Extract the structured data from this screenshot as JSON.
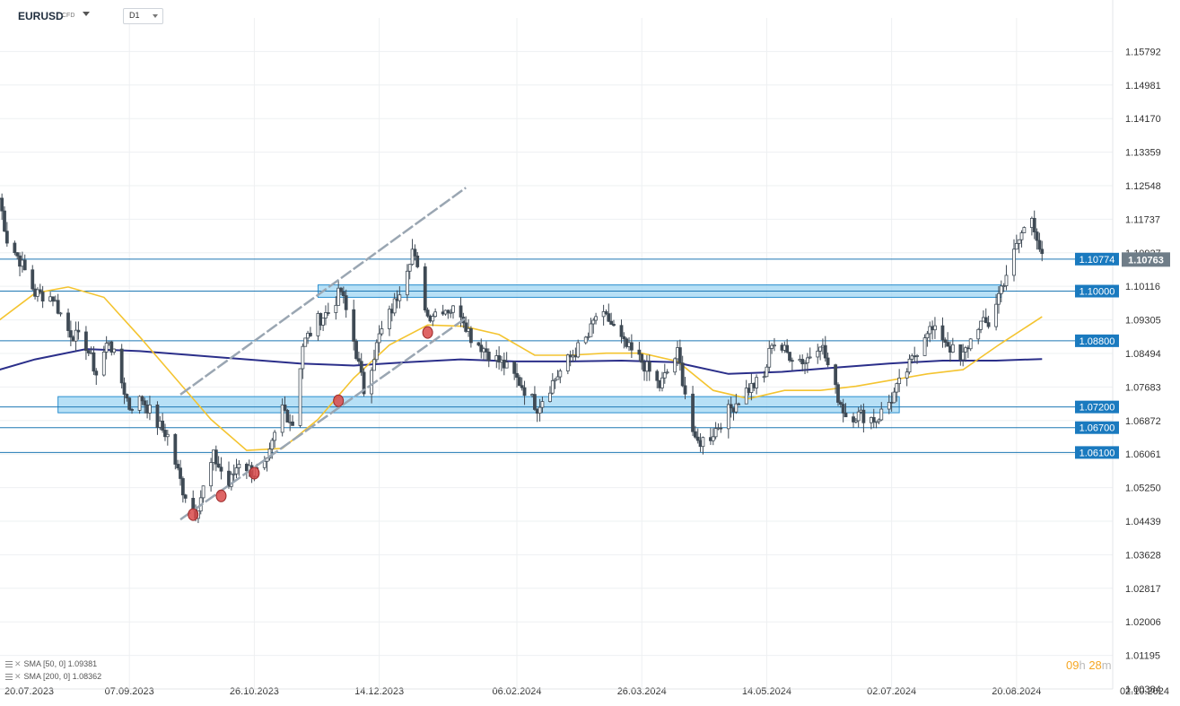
{
  "header": {
    "symbol": "EURUSD",
    "instrument_type": "CFD",
    "timeframe": "D1"
  },
  "indicators": [
    {
      "label": "SMA [50, 0]",
      "value": "1.09381",
      "color": "#f4c430"
    },
    {
      "label": "SMA [200, 0]",
      "value": "1.08362",
      "color": "#2b2f8a"
    }
  ],
  "countdown": {
    "hours": "09",
    "h_unit": "h",
    "minutes": "28",
    "m_unit": "m"
  },
  "colors": {
    "up_candle": "#ffffff",
    "down_candle": "#3f4a55",
    "grid": "#eef0f2",
    "level_line": "#1f78b4",
    "level_tag": "#1a7abf",
    "zone_fill": "#9fd6f3",
    "zone_border": "#2a8fcf",
    "channel_line": "#9aa6b2",
    "marker": "#d94a4a",
    "current_price_tag": "#6f7d88"
  },
  "chart_data": {
    "type": "candlestick",
    "symbol": "EURUSD",
    "timeframe": "D1",
    "ylim": [
      1.00384,
      1.16603
    ],
    "y_ticks": [
      "1.15792",
      "1.14981",
      "1.14170",
      "1.13359",
      "1.12548",
      "1.11737",
      "1.10927",
      "1.10116",
      "1.09305",
      "1.08494",
      "1.07683",
      "1.06872",
      "1.06061",
      "1.05250",
      "1.04439",
      "1.03628",
      "1.02817",
      "1.02006",
      "1.01195",
      "1.00384"
    ],
    "x_ticks": [
      "20.07.2023",
      "07.09.2023",
      "26.10.2023",
      "14.12.2023",
      "06.02.2024",
      "26.03.2024",
      "14.05.2024",
      "02.07.2024",
      "20.08.2024",
      "02.10.2024"
    ],
    "current_price": "1.10763",
    "levels": [
      "1.10774",
      "1.10000",
      "1.08800",
      "1.07200",
      "1.06700",
      "1.06100"
    ],
    "zones": [
      {
        "from_date": "2023-11-20",
        "to_date": "2024-08-14",
        "low": 1.0985,
        "high": 1.1015
      },
      {
        "from_date": "2023-08-10",
        "to_date": "2024-07-05",
        "low": 1.0706,
        "high": 1.0745
      }
    ],
    "channel": [
      {
        "from": [
          "2023-09-27",
          1.0448
        ],
        "to": [
          "2024-01-17",
          1.0935
        ]
      },
      {
        "from": [
          "2023-09-27",
          1.075
        ],
        "to": [
          "2024-01-17",
          1.125
        ]
      }
    ],
    "markers": [
      [
        "2023-10-02",
        1.046
      ],
      [
        "2023-10-13",
        1.0505
      ],
      [
        "2023-10-26",
        1.056
      ],
      [
        "2023-11-28",
        1.0735
      ],
      [
        "2024-01-02",
        1.09
      ]
    ],
    "series_close": [
      [
        "2023-07-18",
        1.1225
      ],
      [
        "2023-07-21",
        1.1125
      ],
      [
        "2023-07-26",
        1.1075
      ],
      [
        "2023-08-01",
        1.0995
      ],
      [
        "2023-08-08",
        1.0985
      ],
      [
        "2023-08-14",
        1.0905
      ],
      [
        "2023-08-21",
        1.087
      ],
      [
        "2023-08-25",
        1.08
      ],
      [
        "2023-08-30",
        1.0885
      ],
      [
        "2023-09-04",
        1.078
      ],
      [
        "2023-09-07",
        1.072
      ],
      [
        "2023-09-12",
        1.074
      ],
      [
        "2023-09-18",
        1.068
      ],
      [
        "2023-09-22",
        1.065
      ],
      [
        "2023-09-28",
        1.052
      ],
      [
        "2023-10-03",
        1.0465
      ],
      [
        "2023-10-10",
        1.06
      ],
      [
        "2023-10-16",
        1.053
      ],
      [
        "2023-10-20",
        1.059
      ],
      [
        "2023-10-26",
        1.056
      ],
      [
        "2023-10-31",
        1.058
      ],
      [
        "2023-11-06",
        1.072
      ],
      [
        "2023-11-10",
        1.068
      ],
      [
        "2023-11-14",
        1.087
      ],
      [
        "2023-11-20",
        1.093
      ],
      [
        "2023-11-24",
        1.095
      ],
      [
        "2023-11-29",
        1.1
      ],
      [
        "2023-12-04",
        1.088
      ],
      [
        "2023-12-08",
        1.076
      ],
      [
        "2023-12-14",
        1.089
      ],
      [
        "2023-12-20",
        1.097
      ],
      [
        "2023-12-27",
        1.11
      ],
      [
        "2024-01-02",
        1.094
      ],
      [
        "2024-01-08",
        1.096
      ],
      [
        "2024-01-15",
        1.095
      ],
      [
        "2024-01-19",
        1.089
      ],
      [
        "2024-01-26",
        1.085
      ],
      [
        "2024-02-01",
        1.082
      ],
      [
        "2024-02-07",
        1.078
      ],
      [
        "2024-02-14",
        1.072
      ],
      [
        "2024-02-20",
        1.078
      ],
      [
        "2024-02-27",
        1.084
      ],
      [
        "2024-03-05",
        1.089
      ],
      [
        "2024-03-08",
        1.094
      ],
      [
        "2024-03-13",
        1.093
      ],
      [
        "2024-03-19",
        1.087
      ],
      [
        "2024-03-26",
        1.083
      ],
      [
        "2024-04-02",
        1.077
      ],
      [
        "2024-04-09",
        1.085
      ],
      [
        "2024-04-16",
        1.063
      ],
      [
        "2024-04-22",
        1.065
      ],
      [
        "2024-04-29",
        1.071
      ],
      [
        "2024-05-06",
        1.076
      ],
      [
        "2024-05-13",
        1.079
      ],
      [
        "2024-05-16",
        1.088
      ],
      [
        "2024-05-22",
        1.085
      ],
      [
        "2024-05-29",
        1.083
      ],
      [
        "2024-06-04",
        1.088
      ],
      [
        "2024-06-10",
        1.076
      ],
      [
        "2024-06-14",
        1.07
      ],
      [
        "2024-06-20",
        1.07
      ],
      [
        "2024-06-26",
        1.069
      ],
      [
        "2024-07-02",
        1.074
      ],
      [
        "2024-07-09",
        1.082
      ],
      [
        "2024-07-16",
        1.091
      ],
      [
        "2024-07-22",
        1.089
      ],
      [
        "2024-07-29",
        1.083
      ],
      [
        "2024-08-05",
        1.092
      ],
      [
        "2024-08-09",
        1.092
      ],
      [
        "2024-08-14",
        1.101
      ],
      [
        "2024-08-19",
        1.109
      ],
      [
        "2024-08-22",
        1.114
      ],
      [
        "2024-08-26",
        1.118
      ],
      [
        "2024-08-28",
        1.1135
      ],
      [
        "2024-08-30",
        1.1076
      ]
    ],
    "sma50": [
      [
        "2023-07-18",
        1.093
      ],
      [
        "2023-08-01",
        1.0995
      ],
      [
        "2023-08-14",
        1.101
      ],
      [
        "2023-08-28",
        1.0985
      ],
      [
        "2023-09-11",
        1.089
      ],
      [
        "2023-09-25",
        1.079
      ],
      [
        "2023-10-09",
        1.069
      ],
      [
        "2023-10-23",
        1.0615
      ],
      [
        "2023-11-06",
        1.062
      ],
      [
        "2023-11-20",
        1.069
      ],
      [
        "2023-12-04",
        1.079
      ],
      [
        "2023-12-18",
        1.087
      ],
      [
        "2024-01-02",
        1.0918
      ],
      [
        "2024-01-16",
        1.0915
      ],
      [
        "2024-01-30",
        1.0895
      ],
      [
        "2024-02-13",
        1.0845
      ],
      [
        "2024-02-27",
        1.0845
      ],
      [
        "2024-03-12",
        1.085
      ],
      [
        "2024-03-26",
        1.085
      ],
      [
        "2024-04-09",
        1.083
      ],
      [
        "2024-04-23",
        1.076
      ],
      [
        "2024-05-07",
        1.074
      ],
      [
        "2024-05-21",
        1.076
      ],
      [
        "2024-06-04",
        1.076
      ],
      [
        "2024-06-18",
        1.077
      ],
      [
        "2024-07-02",
        1.0785
      ],
      [
        "2024-07-16",
        1.08
      ],
      [
        "2024-07-30",
        1.081
      ],
      [
        "2024-08-13",
        1.087
      ],
      [
        "2024-08-30",
        1.0938
      ]
    ],
    "sma200": [
      [
        "2023-07-18",
        1.081
      ],
      [
        "2023-08-01",
        1.0835
      ],
      [
        "2023-08-21",
        1.086
      ],
      [
        "2023-09-11",
        1.0855
      ],
      [
        "2023-10-02",
        1.0845
      ],
      [
        "2023-10-23",
        1.0835
      ],
      [
        "2023-11-13",
        1.0825
      ],
      [
        "2023-12-04",
        1.082
      ],
      [
        "2023-12-25",
        1.0828
      ],
      [
        "2024-01-15",
        1.0835
      ],
      [
        "2024-02-05",
        1.083
      ],
      [
        "2024-02-26",
        1.083
      ],
      [
        "2024-03-18",
        1.0832
      ],
      [
        "2024-04-08",
        1.0828
      ],
      [
        "2024-04-29",
        1.08
      ],
      [
        "2024-05-20",
        1.0805
      ],
      [
        "2024-06-10",
        1.0815
      ],
      [
        "2024-07-01",
        1.0825
      ],
      [
        "2024-07-22",
        1.0832
      ],
      [
        "2024-08-12",
        1.0832
      ],
      [
        "2024-08-30",
        1.0836
      ]
    ]
  }
}
